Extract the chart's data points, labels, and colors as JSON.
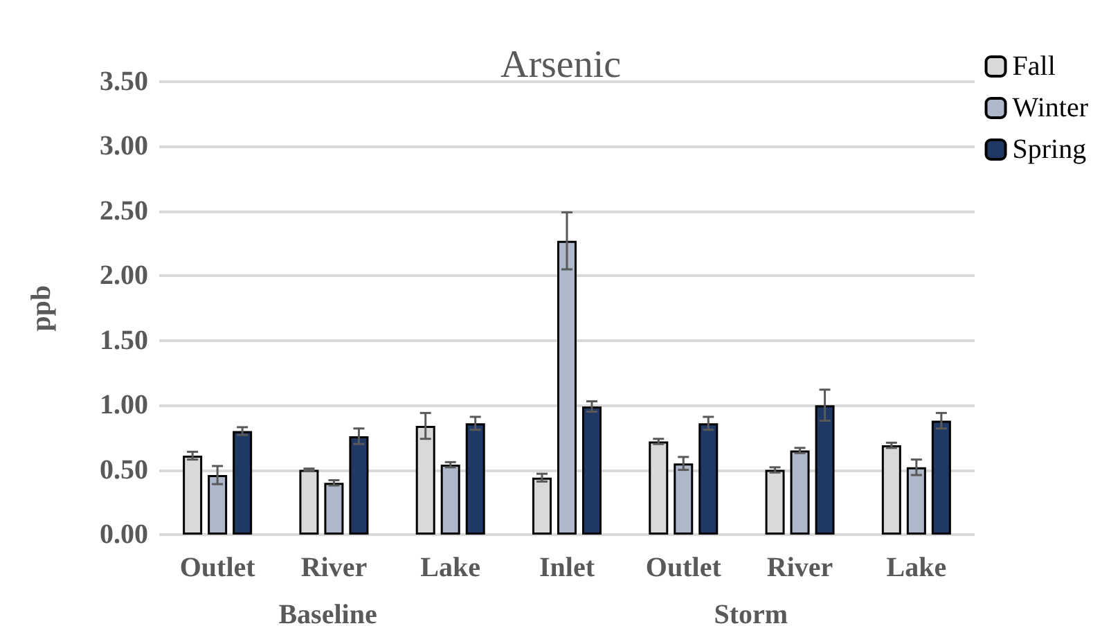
{
  "chart_data": {
    "type": "bar",
    "title": "Arsenic",
    "ylabel": "ppb",
    "categories": [
      "Outlet",
      "River",
      "Lake",
      "Inlet",
      "Outlet",
      "River",
      "Lake"
    ],
    "series": [
      {
        "name": "Fall",
        "color": "#d9d9d9",
        "values": [
          0.61,
          0.5,
          0.84,
          0.44,
          0.72,
          0.5,
          0.69
        ],
        "errors": [
          0.03,
          0.01,
          0.1,
          0.03,
          0.02,
          0.02,
          0.02
        ]
      },
      {
        "name": "Winter",
        "color": "#adb9ca",
        "values": [
          0.46,
          0.4,
          0.54,
          2.27,
          0.55,
          0.65,
          0.52
        ],
        "errors": [
          0.07,
          0.02,
          0.02,
          0.22,
          0.05,
          0.02,
          0.06
        ]
      },
      {
        "name": "Spring",
        "color": "#203864",
        "values": [
          0.8,
          0.76,
          0.86,
          0.99,
          0.86,
          1.0,
          0.88
        ],
        "errors": [
          0.03,
          0.06,
          0.05,
          0.04,
          0.05,
          0.12,
          0.06
        ]
      }
    ],
    "ylim": [
      0,
      3.5
    ],
    "yticks": [
      {
        "value": 0,
        "label": "0.00"
      },
      {
        "value": 0.5,
        "label": "0.50"
      },
      {
        "value": 1,
        "label": "1.00"
      },
      {
        "value": 1.5,
        "label": "1.50"
      },
      {
        "value": 2,
        "label": "2.00"
      },
      {
        "value": 2.5,
        "label": "2.50"
      },
      {
        "value": 3,
        "label": "3.00"
      },
      {
        "value": 3.5,
        "label": "3.50"
      }
    ],
    "annotations": [
      "Baseline",
      "Storm"
    ],
    "grid": "y",
    "legend": "top right"
  }
}
